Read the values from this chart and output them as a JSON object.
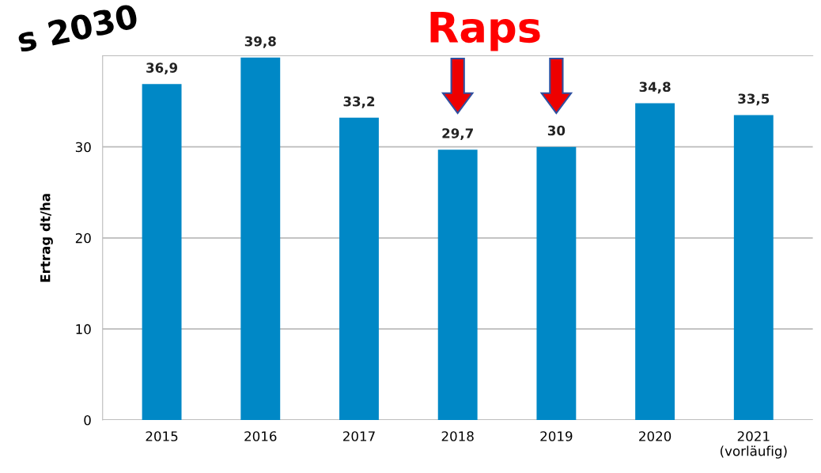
{
  "chart_data": {
    "type": "bar",
    "categories": [
      "2015",
      "2016",
      "2017",
      "2018",
      "2019",
      "2020",
      "2021\n(vorläufig)"
    ],
    "values": [
      36.9,
      39.8,
      33.2,
      29.7,
      30,
      34.8,
      33.5
    ],
    "color": "#0088c6",
    "ylabel": "Ertrag dt/ha",
    "ylim": [
      0,
      40
    ],
    "yticks": [
      0,
      10,
      20,
      30
    ],
    "grid": "y",
    "data_labels": true,
    "value_labels": [
      "36,9",
      "39,8",
      "33,2",
      "29,7",
      "30",
      "34,8",
      "33,5"
    ],
    "annotations": [
      "Raps",
      "s 2030"
    ]
  }
}
